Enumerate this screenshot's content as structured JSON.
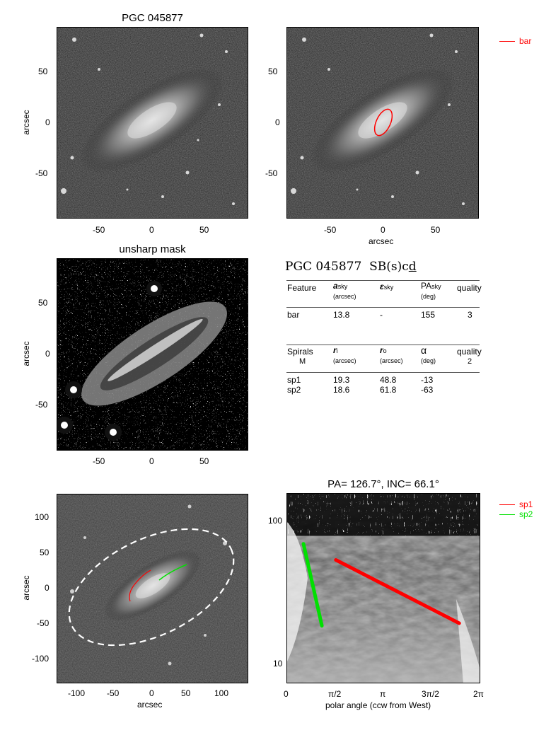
{
  "panel1": {
    "title": "PGC 045877",
    "ylabel": "arcsec",
    "yticks": [
      "50",
      "0",
      "-50"
    ],
    "xticks": [
      "-50",
      "0",
      "50"
    ]
  },
  "panel2": {
    "xlabel": "arcsec",
    "yticks": [
      "50",
      "0",
      "-50"
    ],
    "xticks": [
      "-50",
      "0",
      "50"
    ],
    "legend": {
      "label": "bar",
      "color": "#ff0000"
    }
  },
  "panel3": {
    "title": "unsharp mask",
    "ylabel": "arcsec",
    "yticks": [
      "50",
      "0",
      "-50"
    ],
    "xticks": [
      "-50",
      "0",
      "50"
    ]
  },
  "info": {
    "heading_name": "PGC 045877",
    "heading_type": "SB(s)c",
    "heading_type_underlined": "d",
    "bar_table": {
      "headers": [
        {
          "main": "Feature",
          "sub": ""
        },
        {
          "main": "a",
          "sub": "sky",
          "unit": "(arcsec)"
        },
        {
          "main": "ε",
          "sub": "sky",
          "unit": ""
        },
        {
          "main": "PA",
          "sub": "sky",
          "unit": "(deg)"
        },
        {
          "main": "quality",
          "sub": ""
        }
      ],
      "rows": [
        [
          "bar",
          "13.8",
          "-",
          "155",
          "3"
        ]
      ]
    },
    "spiral_table": {
      "headers": [
        {
          "main": "Spirals",
          "second": "M"
        },
        {
          "main": "r",
          "sub": "i",
          "unit": "(arcsec)"
        },
        {
          "main": "r",
          "sub": "o",
          "unit": "(arcsec)"
        },
        {
          "main": "α",
          "unit": "(deg)"
        },
        {
          "main": "quality",
          "second": "2"
        }
      ],
      "rows": [
        [
          "sp1",
          "19.3",
          "48.8",
          "-13"
        ],
        [
          "sp2",
          "18.6",
          "61.8",
          "-63"
        ]
      ]
    }
  },
  "panel5": {
    "ylabel": "arcsec",
    "xlabel": "arcsec",
    "yticks": [
      "100",
      "50",
      "0",
      "-50",
      "-100"
    ],
    "xticks": [
      "-100",
      "-50",
      "0",
      "50",
      "100"
    ]
  },
  "panel6": {
    "title": "PA= 126.7°, INC=  66.1°",
    "xlabel": "polar angle (ccw from West)",
    "yticks": [
      "100",
      "10"
    ],
    "xticks": [
      "0",
      "π/2",
      "π",
      "3π/2",
      "2π"
    ],
    "legend": [
      {
        "label": "sp1",
        "color": "#ff0000"
      },
      {
        "label": "sp2",
        "color": "#00e000"
      }
    ]
  },
  "chart_data": {
    "type": "line",
    "title": "PA= 126.7°, INC=  66.1°",
    "xlabel": "polar angle (ccw from West)",
    "xlim": [
      0,
      6.2832
    ],
    "ylim": [
      8,
      130
    ],
    "yscale": "log",
    "series": [
      {
        "name": "sp1",
        "color": "#ff0000",
        "x": [
          1.6,
          5.6
        ],
        "y": [
          48.8,
          19.3
        ]
      },
      {
        "name": "sp2",
        "color": "#00e000",
        "x": [
          0.55,
          1.15
        ],
        "y": [
          61.8,
          18.6
        ]
      }
    ]
  },
  "colors": {
    "bar": "#ff0000",
    "sp1": "#ff0000",
    "sp2": "#00e000",
    "ellipse": "#ffffff"
  }
}
